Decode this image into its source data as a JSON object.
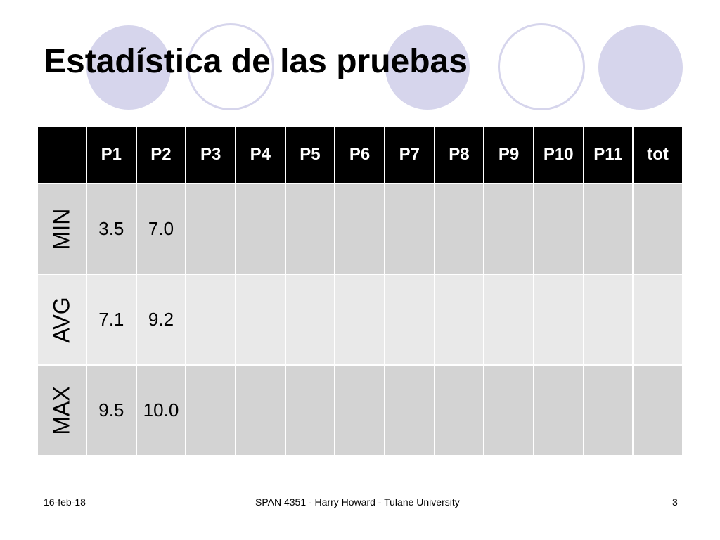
{
  "slide": {
    "title": "Estadística de las pruebas"
  },
  "table": {
    "headers": [
      "P1",
      "P2",
      "P3",
      "P4",
      "P5",
      "P6",
      "P7",
      "P8",
      "P9",
      "P10",
      "P11",
      "tot"
    ],
    "rows": [
      {
        "label": "MIN",
        "values": [
          "3.5",
          "7.0",
          "",
          "",
          "",
          "",
          "",
          "",
          "",
          "",
          "",
          ""
        ]
      },
      {
        "label": "AVG",
        "values": [
          "7.1",
          "9.2",
          "",
          "",
          "",
          "",
          "",
          "",
          "",
          "",
          "",
          ""
        ]
      },
      {
        "label": "MAX",
        "values": [
          "9.5",
          "10.0",
          "",
          "",
          "",
          "",
          "",
          "",
          "",
          "",
          "",
          ""
        ]
      }
    ]
  },
  "footer": {
    "date": "16-feb-18",
    "course": "SPAN 4351 - Harry Howard - Tulane University",
    "page_number": "3"
  },
  "colors": {
    "circle": "#d6d5ec",
    "header_bg": "#000000",
    "row_dark": "#d3d3d3",
    "row_light": "#e9e9e9"
  }
}
